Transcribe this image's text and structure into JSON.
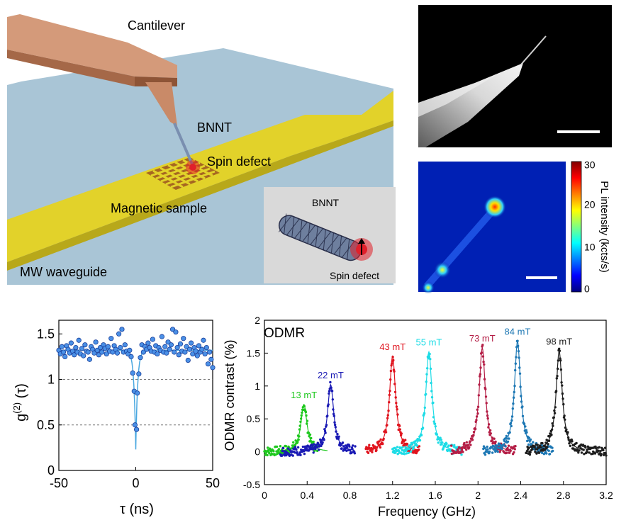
{
  "scene": {
    "label_cantilever": "Cantilever",
    "label_bnnt": "BNNT",
    "label_spin_defect": "Spin defect",
    "label_magnetic_sample": "Magnetic sample",
    "label_waveguide": "MW waveguide",
    "inset_bnnt": "BNNT",
    "inset_spin_defect": "Spin defect",
    "colors": {
      "substrate": "#a9c5d6",
      "waveguide": "#e2d22a",
      "cantilever": "#d49a7a",
      "defect": "#e0202a"
    }
  },
  "pl_map": {
    "colorbar_label": "PL intensity (kcts/s)",
    "colorbar_ticks": [
      "30",
      "20",
      "10",
      "0"
    ]
  },
  "chart_data": [
    {
      "type": "scatter",
      "xlabel": "τ (ns)",
      "ylabel": "g(2) (τ)",
      "ylabel_main": "g",
      "ylabel_sup": "(2)",
      "ylabel_arg": " (τ)",
      "xlim": [
        -50,
        50
      ],
      "ylim": [
        0,
        1.65
      ],
      "xticks": [
        "-50",
        "0",
        "50"
      ],
      "yticks": [
        "0",
        "0.5",
        "1",
        "1.5"
      ],
      "reference_lines": [
        0.5,
        1
      ],
      "fit": {
        "baseline": 1.32,
        "dip_min": 0.23,
        "tau_ns": 1.2
      },
      "points": [
        [
          -50,
          1.32
        ],
        [
          -49,
          1.28
        ],
        [
          -48,
          1.36
        ],
        [
          -47,
          1.3
        ],
        [
          -46,
          1.25
        ],
        [
          -45,
          1.37
        ],
        [
          -44,
          1.33
        ],
        [
          -43,
          1.29
        ],
        [
          -42,
          1.4
        ],
        [
          -41,
          1.31
        ],
        [
          -40,
          1.27
        ],
        [
          -39,
          1.35
        ],
        [
          -38,
          1.3
        ],
        [
          -37,
          1.43
        ],
        [
          -36,
          1.28
        ],
        [
          -35,
          1.34
        ],
        [
          -34,
          1.26
        ],
        [
          -33,
          1.38
        ],
        [
          -32,
          1.31
        ],
        [
          -31,
          1.3
        ],
        [
          -30,
          1.22
        ],
        [
          -29,
          1.36
        ],
        [
          -28,
          1.33
        ],
        [
          -27,
          1.29
        ],
        [
          -26,
          1.41
        ],
        [
          -25,
          1.32
        ],
        [
          -24,
          1.27
        ],
        [
          -23,
          1.35
        ],
        [
          -22,
          1.3
        ],
        [
          -21,
          1.38
        ],
        [
          -20,
          1.34
        ],
        [
          -19,
          1.28
        ],
        [
          -18,
          1.36
        ],
        [
          -17,
          1.31
        ],
        [
          -16,
          1.45
        ],
        [
          -15,
          1.3
        ],
        [
          -14,
          1.37
        ],
        [
          -13,
          1.33
        ],
        [
          -12,
          1.29
        ],
        [
          -11,
          1.5
        ],
        [
          -10,
          1.35
        ],
        [
          -9,
          1.55
        ],
        [
          -8,
          1.3
        ],
        [
          -7,
          1.38
        ],
        [
          -6,
          1.31
        ],
        [
          -5,
          1.28
        ],
        [
          -4,
          1.32
        ],
        [
          -3,
          1.25
        ],
        [
          -2,
          1.07
        ],
        [
          -1,
          0.87
        ],
        [
          -0.5,
          0.5
        ],
        [
          0.5,
          0.45
        ],
        [
          1,
          0.85
        ],
        [
          2,
          1.06
        ],
        [
          3,
          1.24
        ],
        [
          4,
          1.38
        ],
        [
          5,
          1.3
        ],
        [
          6,
          1.36
        ],
        [
          7,
          1.33
        ],
        [
          8,
          1.4
        ],
        [
          9,
          1.35
        ],
        [
          10,
          1.31
        ],
        [
          11,
          1.44
        ],
        [
          12,
          1.3
        ],
        [
          13,
          1.37
        ],
        [
          14,
          1.28
        ],
        [
          15,
          1.35
        ],
        [
          16,
          1.32
        ],
        [
          17,
          1.47
        ],
        [
          18,
          1.3
        ],
        [
          19,
          1.36
        ],
        [
          20,
          1.29
        ],
        [
          21,
          1.41
        ],
        [
          22,
          1.33
        ],
        [
          23,
          1.38
        ],
        [
          24,
          1.55
        ],
        [
          25,
          1.3
        ],
        [
          26,
          1.52
        ],
        [
          27,
          1.35
        ],
        [
          28,
          1.27
        ],
        [
          29,
          1.39
        ],
        [
          30,
          1.31
        ],
        [
          31,
          1.45
        ],
        [
          32,
          1.3
        ],
        [
          33,
          1.36
        ],
        [
          34,
          1.21
        ],
        [
          35,
          1.33
        ],
        [
          36,
          1.4
        ],
        [
          37,
          1.28
        ],
        [
          38,
          1.35
        ],
        [
          39,
          1.31
        ],
        [
          40,
          1.26
        ],
        [
          41,
          1.37
        ],
        [
          42,
          1.3
        ],
        [
          43,
          1.33
        ],
        [
          44,
          1.43
        ],
        [
          45,
          1.28
        ],
        [
          46,
          1.35
        ],
        [
          47,
          1.17
        ],
        [
          48,
          1.3
        ],
        [
          49,
          1.22
        ],
        [
          50,
          1.13
        ]
      ]
    },
    {
      "type": "line",
      "title": "ODMR",
      "xlabel": "Frequency (GHz)",
      "ylabel": "ODMR contrast (%)",
      "xlim": [
        0,
        3.2
      ],
      "ylim": [
        -0.5,
        2.0
      ],
      "xticks": [
        "0",
        "0.4",
        "0.8",
        "1.2",
        "1.6",
        "2",
        "2.4",
        "2.8",
        "3.2"
      ],
      "yticks": [
        "-0.5",
        "0",
        "0.5",
        "1",
        "1.5",
        "2"
      ],
      "linewidth_ghz": 0.035,
      "series": [
        {
          "name": "13 mT",
          "center": 0.37,
          "amplitude": 0.72,
          "range": [
            0.0,
            0.5
          ],
          "color": "#1ec81e"
        },
        {
          "name": "22 mT",
          "center": 0.62,
          "amplitude": 1.02,
          "range": [
            0.15,
            0.85
          ],
          "color": "#1a1ab4"
        },
        {
          "name": "43 mT",
          "center": 1.2,
          "amplitude": 1.45,
          "range": [
            0.95,
            1.45
          ],
          "color": "#e0141e"
        },
        {
          "name": "55 mT",
          "center": 1.54,
          "amplitude": 1.52,
          "range": [
            1.2,
            1.85
          ],
          "color": "#1edce6"
        },
        {
          "name": "73 mT",
          "center": 2.04,
          "amplitude": 1.58,
          "range": [
            1.75,
            2.35
          ],
          "color": "#b41e46"
        },
        {
          "name": "84 mT",
          "center": 2.37,
          "amplitude": 1.68,
          "range": [
            2.05,
            2.7
          ],
          "color": "#1e78b4"
        },
        {
          "name": "98 mT",
          "center": 2.76,
          "amplitude": 1.53,
          "range": [
            2.45,
            3.2
          ],
          "color": "#1e1e1e"
        }
      ]
    }
  ]
}
